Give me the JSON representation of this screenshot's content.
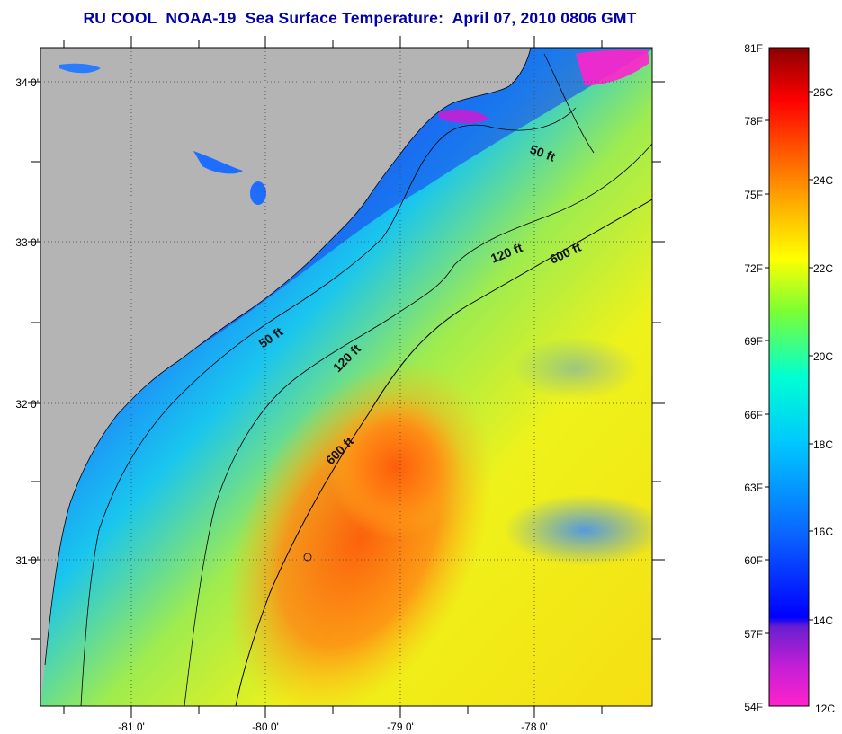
{
  "title": "RU COOL  NOAA-19  Sea Surface Temperature:  April 07, 2010 0806 GMT",
  "map": {
    "lat_labels": [
      "34 0'",
      "33 0'",
      "32 0'",
      "31 0'"
    ],
    "lon_labels": [
      "-81 0'",
      "-80 0'",
      "-79 0'",
      "-78 0'"
    ],
    "land_color": "#b4b4b4",
    "isobath_labels": [
      "50 ft",
      "50 ft",
      "120 ft",
      "120 ft",
      "600 ft",
      "600 ft"
    ]
  },
  "colorbar": {
    "fahrenheit_labels": [
      "81F",
      "78F",
      "75F",
      "72F",
      "69F",
      "66F",
      "63F",
      "60F",
      "57F",
      "54F"
    ],
    "celsius_labels": [
      "26C",
      "24C",
      "22C",
      "20C",
      "18C",
      "16C",
      "14C",
      "12C"
    ],
    "colors": [
      "#ff22cc",
      "#7a1fd0",
      "#0000ff",
      "#0a64ff",
      "#00d4ff",
      "#00ffcc",
      "#7bff33",
      "#ffff00",
      "#ffa500",
      "#ff4500",
      "#ff0000",
      "#8b0000"
    ]
  }
}
